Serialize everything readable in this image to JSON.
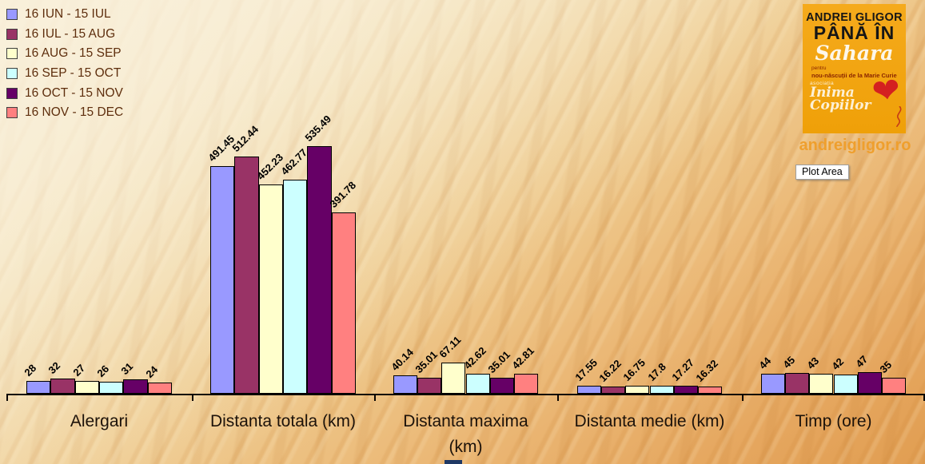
{
  "chart_data": {
    "type": "bar",
    "title": "",
    "xlabel": "",
    "ylabel": "",
    "value_axis_visible": false,
    "grid": false,
    "legend_position": "top-left",
    "data_labels": true,
    "data_label_rotation_deg": -45,
    "ylim": [
      0,
      560
    ],
    "categories": [
      "Alergari",
      "Distanta totala (km)",
      "Distanta maxima (km)",
      "Distanta medie (km)",
      "Timp (ore)"
    ],
    "series": [
      {
        "name": "16 IUN - 15 IUL",
        "color": "#9999FF",
        "values": [
          28,
          491.45,
          40.14,
          17.55,
          44
        ]
      },
      {
        "name": "16 IUL - 15 AUG",
        "color": "#993366",
        "values": [
          32,
          512.44,
          35.01,
          16.22,
          45
        ]
      },
      {
        "name": "16 AUG - 15 SEP",
        "color": "#FFFFCC",
        "values": [
          27,
          452.23,
          67.11,
          16.75,
          43
        ]
      },
      {
        "name": "16 SEP - 15 OCT",
        "color": "#CCFFFF",
        "values": [
          26,
          462.77,
          42.62,
          17.8,
          42
        ]
      },
      {
        "name": "16 OCT - 15 NOV",
        "color": "#660066",
        "values": [
          31,
          535.49,
          35.01,
          17.27,
          47
        ]
      },
      {
        "name": "16 NOV - 15 DEC",
        "color": "#FF8080",
        "values": [
          24,
          391.78,
          42.81,
          16.32,
          35
        ]
      }
    ]
  },
  "logo": {
    "line1": "ANDREI GLIGOR",
    "line2": "PÂNĂ ÎN",
    "line3": "Sahara",
    "line4": "pentru",
    "line5": "nou-născuții de la Marie Curie",
    "charity_small": "asociația",
    "charity_name1": "Inima",
    "charity_name2": "Copiilor",
    "background_color": "#F2A50F",
    "heart_color": "#D42020"
  },
  "website": "andreigligor.ro",
  "tooltip": {
    "text": "Plot Area"
  },
  "colors": {
    "legend_text": "#5E2E0D",
    "category_text": "#1C120A",
    "data_label_text": "#000000",
    "axis": "#0A0502",
    "website_text": "#EF9F2D"
  }
}
